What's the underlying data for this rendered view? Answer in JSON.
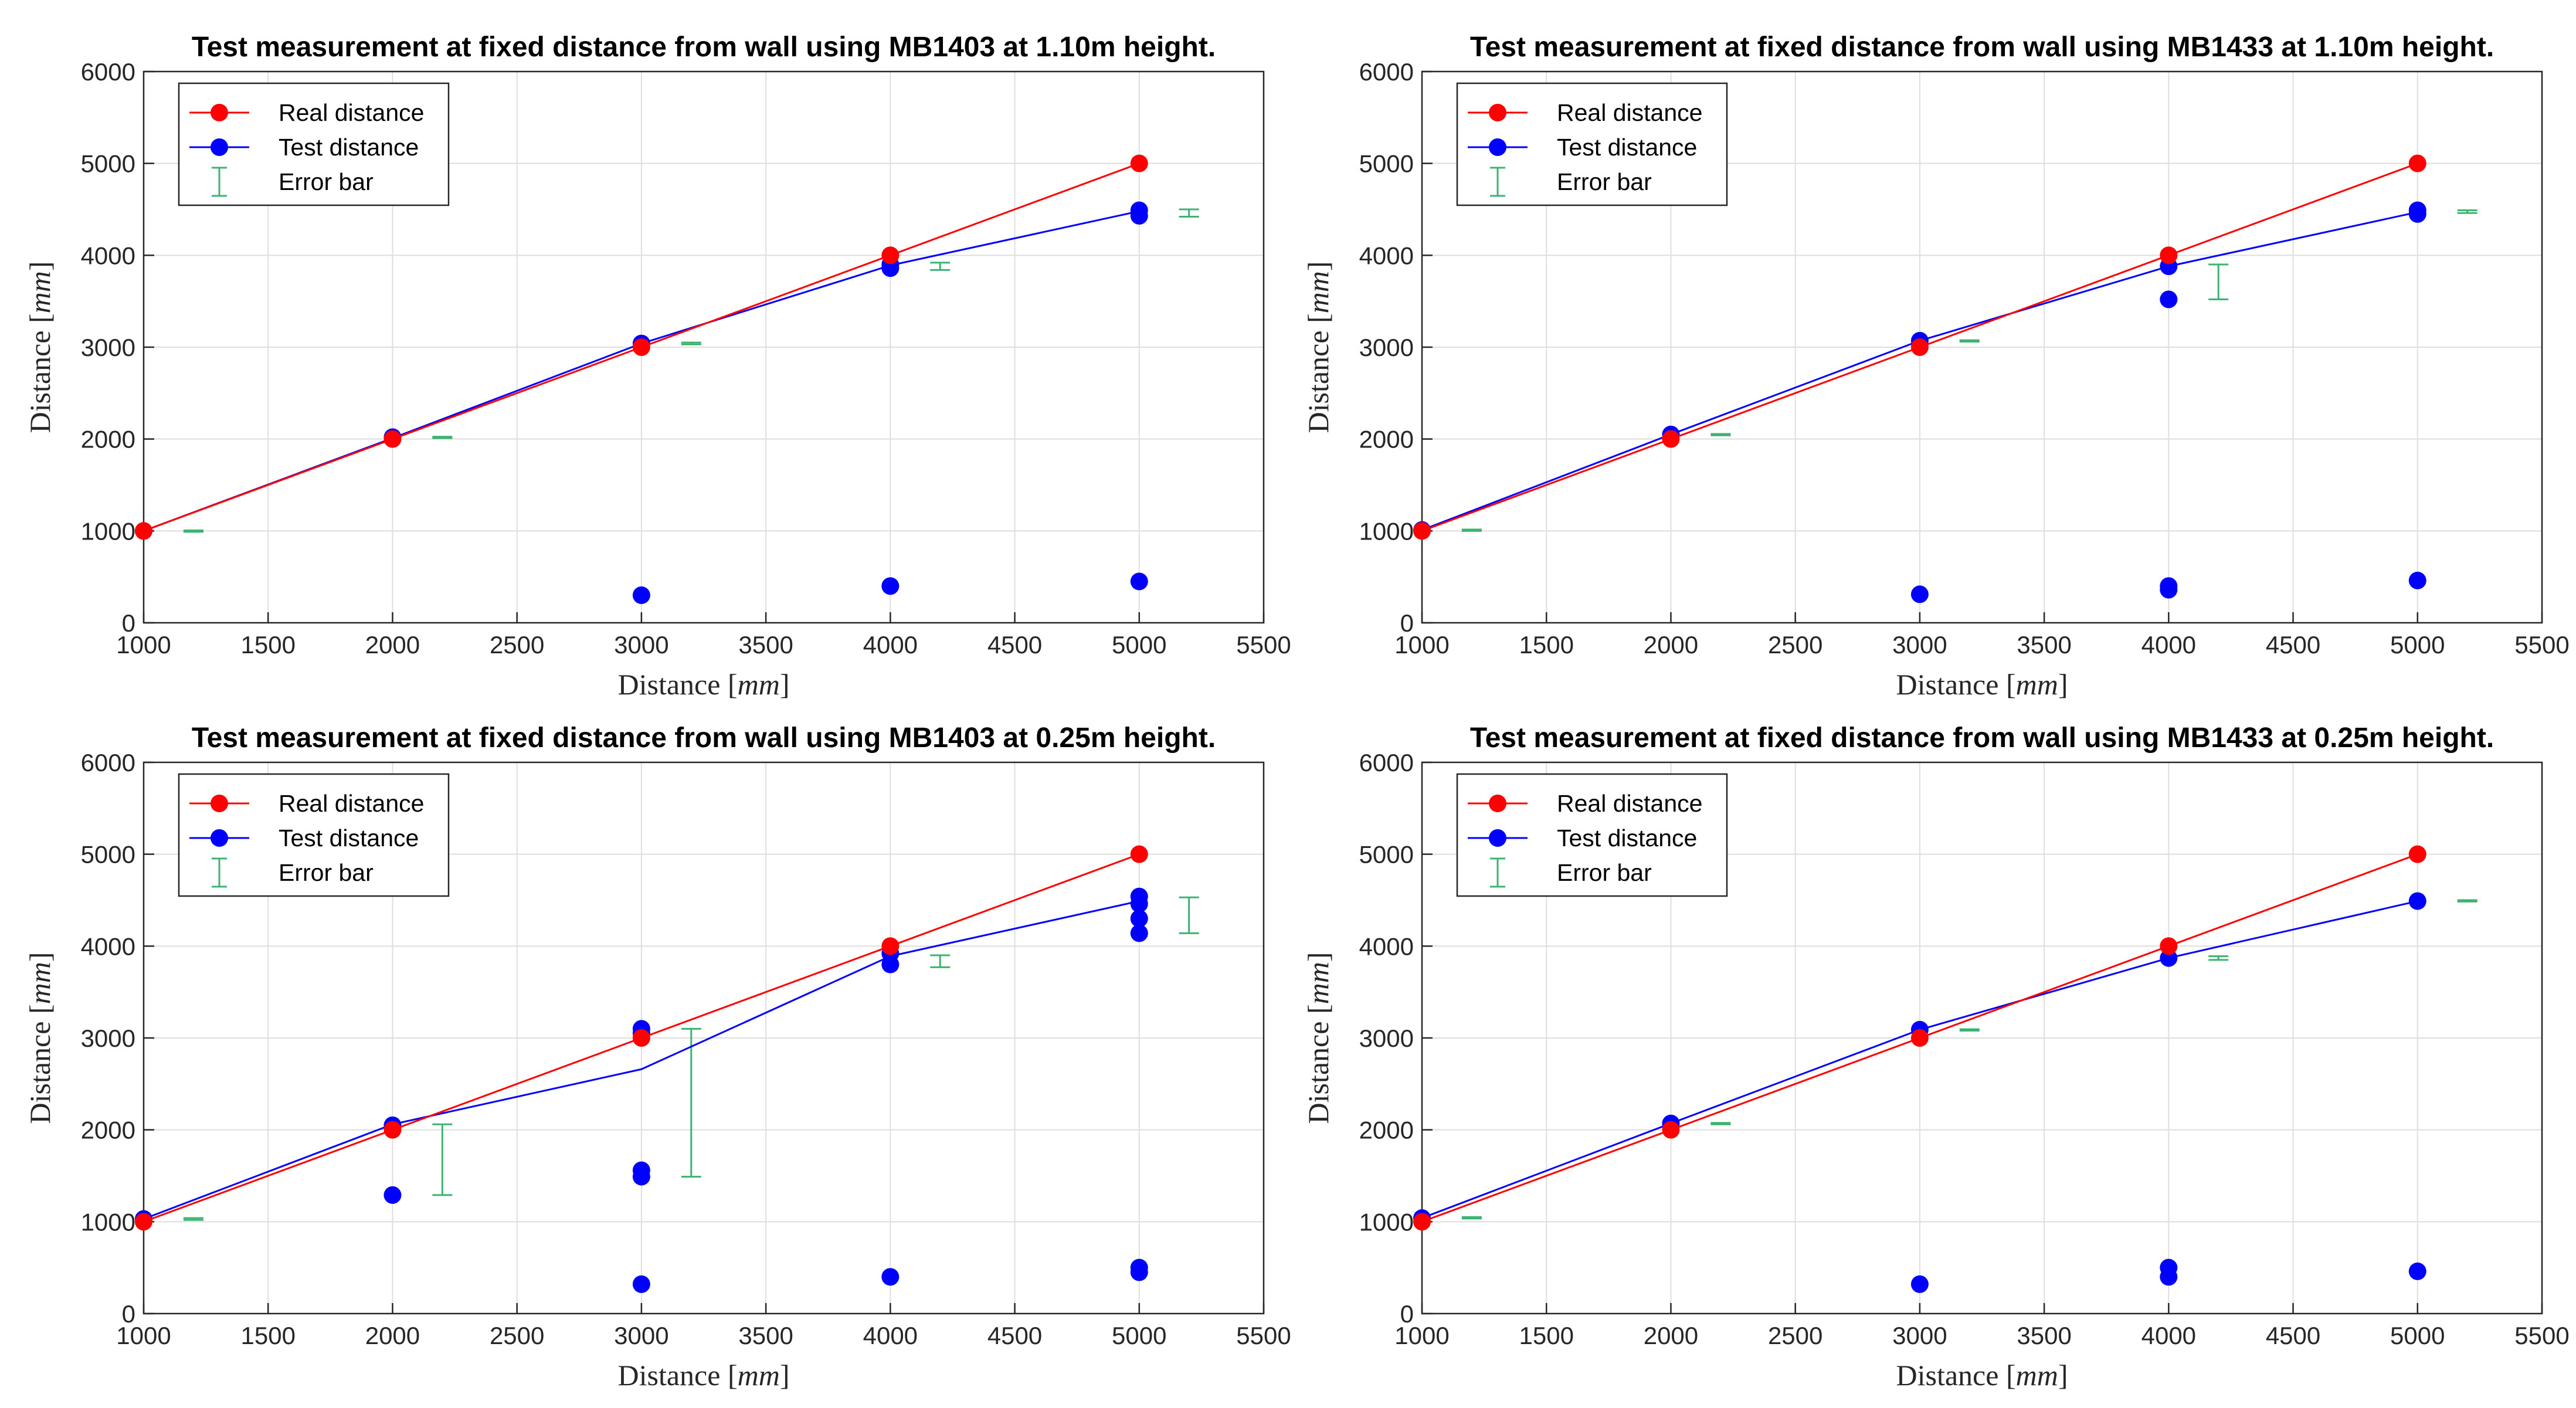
{
  "figure": {
    "panels": 4
  },
  "chart_data": [
    {
      "type": "line",
      "title": "Test measurement at fixed distance from wall using MB1403 at 1.10m height.",
      "xlabel": "Distance",
      "ylabel": "Distance",
      "unit": "mm",
      "xlim": [
        1000,
        5500
      ],
      "ylim": [
        0,
        6000
      ],
      "xticks": [
        1000,
        1500,
        2000,
        2500,
        3000,
        3500,
        4000,
        4500,
        5000,
        5500
      ],
      "yticks": [
        0,
        1000,
        2000,
        3000,
        4000,
        5000,
        6000
      ],
      "grid": true,
      "legend": {
        "position": "top-left",
        "entries": [
          "Real distance",
          "Test distance",
          "Error bar"
        ]
      },
      "colors": {
        "real": "#ff0000",
        "test": "#0000ff",
        "error": "#3cb371"
      },
      "real_line": {
        "x": [
          1000,
          2000,
          3000,
          4000,
          5000
        ],
        "y": [
          1000,
          2000,
          3000,
          4000,
          5000
        ]
      },
      "test_line": {
        "x": [
          1000,
          2000,
          3000,
          4000,
          5000
        ],
        "y": [
          1000,
          2010,
          3040,
          3890,
          4480
        ]
      },
      "test_points": [
        {
          "x": 1000,
          "y": 1000
        },
        {
          "x": 2000,
          "y": 2020
        },
        {
          "x": 3000,
          "y": 3040
        },
        {
          "x": 3000,
          "y": 300
        },
        {
          "x": 4000,
          "y": 3860
        },
        {
          "x": 4000,
          "y": 3900
        },
        {
          "x": 4000,
          "y": 400
        },
        {
          "x": 5000,
          "y": 4490
        },
        {
          "x": 5000,
          "y": 4430
        },
        {
          "x": 5000,
          "y": 450
        }
      ],
      "error_bars": [
        {
          "x": 1200,
          "low": 990,
          "high": 1005
        },
        {
          "x": 2200,
          "low": 2010,
          "high": 2025
        },
        {
          "x": 3200,
          "low": 3030,
          "high": 3050
        },
        {
          "x": 4200,
          "low": 3840,
          "high": 3920
        },
        {
          "x": 5200,
          "low": 4420,
          "high": 4500
        }
      ]
    },
    {
      "type": "line",
      "title": "Test measurement at fixed distance from wall using MB1433 at 1.10m height.",
      "xlabel": "Distance",
      "ylabel": "Distance",
      "unit": "mm",
      "xlim": [
        1000,
        5500
      ],
      "ylim": [
        0,
        6000
      ],
      "xticks": [
        1000,
        1500,
        2000,
        2500,
        3000,
        3500,
        4000,
        4500,
        5000,
        5500
      ],
      "yticks": [
        0,
        1000,
        2000,
        3000,
        4000,
        5000,
        6000
      ],
      "grid": true,
      "legend": {
        "position": "top-left",
        "entries": [
          "Real distance",
          "Test distance",
          "Error bar"
        ]
      },
      "colors": {
        "real": "#ff0000",
        "test": "#0000ff",
        "error": "#3cb371"
      },
      "real_line": {
        "x": [
          1000,
          2000,
          3000,
          4000,
          5000
        ],
        "y": [
          1000,
          2000,
          3000,
          4000,
          5000
        ]
      },
      "test_line": {
        "x": [
          1000,
          2000,
          3000,
          4000,
          5000
        ],
        "y": [
          1010,
          2050,
          3070,
          3880,
          4470
        ]
      },
      "test_points": [
        {
          "x": 1000,
          "y": 1010
        },
        {
          "x": 2000,
          "y": 2050
        },
        {
          "x": 3000,
          "y": 3070
        },
        {
          "x": 3000,
          "y": 310
        },
        {
          "x": 4000,
          "y": 3880
        },
        {
          "x": 4000,
          "y": 3520
        },
        {
          "x": 4000,
          "y": 400
        },
        {
          "x": 4000,
          "y": 360
        },
        {
          "x": 5000,
          "y": 4490
        },
        {
          "x": 5000,
          "y": 4450
        },
        {
          "x": 5000,
          "y": 460
        }
      ],
      "error_bars": [
        {
          "x": 1200,
          "low": 1000,
          "high": 1015
        },
        {
          "x": 2200,
          "low": 2040,
          "high": 2055
        },
        {
          "x": 3200,
          "low": 3060,
          "high": 3075
        },
        {
          "x": 4200,
          "low": 3520,
          "high": 3900
        },
        {
          "x": 5200,
          "low": 4460,
          "high": 4490
        }
      ]
    },
    {
      "type": "line",
      "title": "Test measurement at fixed distance from wall using MB1403 at 0.25m height.",
      "xlabel": "Distance",
      "ylabel": "Distance",
      "unit": "mm",
      "xlim": [
        1000,
        5500
      ],
      "ylim": [
        0,
        6000
      ],
      "xticks": [
        1000,
        1500,
        2000,
        2500,
        3000,
        3500,
        4000,
        4500,
        5000,
        5500
      ],
      "yticks": [
        0,
        1000,
        2000,
        3000,
        4000,
        5000,
        6000
      ],
      "grid": true,
      "legend": {
        "position": "top-left",
        "entries": [
          "Real distance",
          "Test distance",
          "Error bar"
        ]
      },
      "colors": {
        "real": "#ff0000",
        "test": "#0000ff",
        "error": "#3cb371"
      },
      "real_line": {
        "x": [
          1000,
          2000,
          3000,
          4000,
          5000
        ],
        "y": [
          1000,
          2000,
          3000,
          4000,
          5000
        ]
      },
      "test_line": {
        "x": [
          1000,
          2000,
          3000,
          4000,
          5000
        ],
        "y": [
          1030,
          2060,
          2660,
          3890,
          4490
        ]
      },
      "test_points": [
        {
          "x": 1000,
          "y": 1030
        },
        {
          "x": 2000,
          "y": 2050
        },
        {
          "x": 2000,
          "y": 1290
        },
        {
          "x": 3000,
          "y": 3100
        },
        {
          "x": 3000,
          "y": 3050
        },
        {
          "x": 3000,
          "y": 1560
        },
        {
          "x": 3000,
          "y": 1490
        },
        {
          "x": 3000,
          "y": 320
        },
        {
          "x": 4000,
          "y": 3920
        },
        {
          "x": 4000,
          "y": 3800
        },
        {
          "x": 4000,
          "y": 400
        },
        {
          "x": 5000,
          "y": 4540
        },
        {
          "x": 5000,
          "y": 4460
        },
        {
          "x": 5000,
          "y": 4300
        },
        {
          "x": 5000,
          "y": 4140
        },
        {
          "x": 5000,
          "y": 500
        },
        {
          "x": 5000,
          "y": 450
        }
      ],
      "error_bars": [
        {
          "x": 1200,
          "low": 1020,
          "high": 1040
        },
        {
          "x": 2200,
          "low": 1290,
          "high": 2060
        },
        {
          "x": 3200,
          "low": 1490,
          "high": 3100
        },
        {
          "x": 4200,
          "low": 3770,
          "high": 3900
        },
        {
          "x": 5200,
          "low": 4140,
          "high": 4530
        }
      ]
    },
    {
      "type": "line",
      "title": "Test measurement at fixed distance from wall using MB1433 at 0.25m height.",
      "xlabel": "Distance",
      "ylabel": "Distance",
      "unit": "mm",
      "xlim": [
        1000,
        5500
      ],
      "ylim": [
        0,
        6000
      ],
      "xticks": [
        1000,
        1500,
        2000,
        2500,
        3000,
        3500,
        4000,
        4500,
        5000,
        5500
      ],
      "yticks": [
        0,
        1000,
        2000,
        3000,
        4000,
        5000,
        6000
      ],
      "grid": true,
      "legend": {
        "position": "top-left",
        "entries": [
          "Real distance",
          "Test distance",
          "Error bar"
        ]
      },
      "colors": {
        "real": "#ff0000",
        "test": "#0000ff",
        "error": "#3cb371"
      },
      "real_line": {
        "x": [
          1000,
          2000,
          3000,
          4000,
          5000
        ],
        "y": [
          1000,
          2000,
          3000,
          4000,
          5000
        ]
      },
      "test_line": {
        "x": [
          1000,
          2000,
          3000,
          4000,
          5000
        ],
        "y": [
          1040,
          2070,
          3090,
          3870,
          4490
        ]
      },
      "test_points": [
        {
          "x": 1000,
          "y": 1040
        },
        {
          "x": 2000,
          "y": 2070
        },
        {
          "x": 3000,
          "y": 3090
        },
        {
          "x": 3000,
          "y": 320
        },
        {
          "x": 4000,
          "y": 3870
        },
        {
          "x": 4000,
          "y": 500
        },
        {
          "x": 4000,
          "y": 400
        },
        {
          "x": 5000,
          "y": 4490
        },
        {
          "x": 5000,
          "y": 460
        }
      ],
      "error_bars": [
        {
          "x": 1200,
          "low": 1035,
          "high": 1050
        },
        {
          "x": 2200,
          "low": 2060,
          "high": 2075
        },
        {
          "x": 3200,
          "low": 3080,
          "high": 3095
        },
        {
          "x": 4200,
          "low": 3850,
          "high": 3890
        },
        {
          "x": 5200,
          "low": 4485,
          "high": 4500
        }
      ]
    }
  ]
}
